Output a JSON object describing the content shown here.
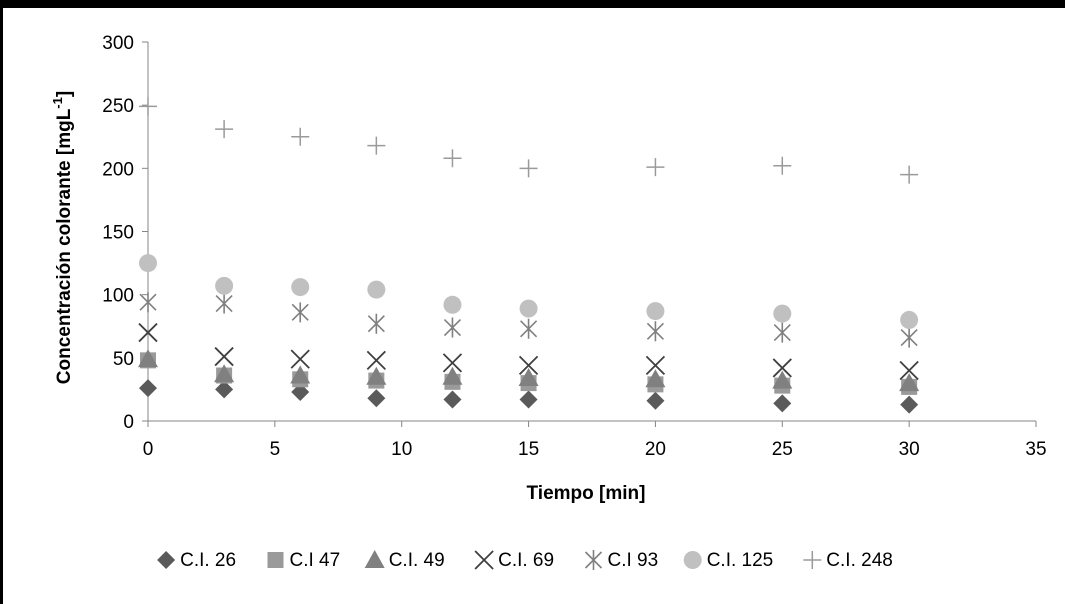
{
  "chart_data": {
    "type": "scatter",
    "title": "",
    "xlabel": "Tiempo [min]",
    "ylabel": "Concentración colorante [mgL",
    "ylabel_sup": "-1",
    "ylabel_close": "]",
    "xlim": [
      0,
      35
    ],
    "ylim": [
      0,
      300
    ],
    "xticks": [
      0,
      5,
      10,
      15,
      20,
      25,
      30,
      35
    ],
    "yticks": [
      0,
      50,
      100,
      150,
      200,
      250,
      300
    ],
    "grid": false,
    "legend_position": "bottom",
    "x": [
      0,
      3,
      6,
      9,
      12,
      15,
      20,
      25,
      30
    ],
    "series": [
      {
        "name": "C.I. 26",
        "marker": "diamond",
        "color": "#5a5a5a",
        "values": [
          26,
          25,
          23,
          18,
          17,
          17,
          16,
          14,
          13
        ]
      },
      {
        "name": "C.I 47",
        "marker": "square",
        "color": "#9a9a9a",
        "values": [
          48,
          36,
          33,
          32,
          31,
          30,
          29,
          28,
          27
        ]
      },
      {
        "name": "C.I. 49",
        "marker": "triangle",
        "color": "#808080",
        "values": [
          49,
          37,
          36,
          35,
          35,
          34,
          33,
          32,
          30
        ]
      },
      {
        "name": "C.I. 69",
        "marker": "x",
        "color": "#404040",
        "values": [
          70,
          51,
          49,
          48,
          46,
          44,
          44,
          42,
          40
        ]
      },
      {
        "name": "C.I 93",
        "marker": "asterisk",
        "color": "#808080",
        "values": [
          94,
          93,
          86,
          77,
          74,
          73,
          71,
          70,
          66
        ]
      },
      {
        "name": "C.I. 125",
        "marker": "circle",
        "color": "#c0c0c0",
        "values": [
          125,
          107,
          106,
          104,
          92,
          89,
          87,
          85,
          80
        ]
      },
      {
        "name": "C.I. 248",
        "marker": "plus",
        "color": "#9a9a9a",
        "values": [
          249,
          231,
          225,
          218,
          208,
          200,
          201,
          202,
          195
        ]
      }
    ]
  }
}
